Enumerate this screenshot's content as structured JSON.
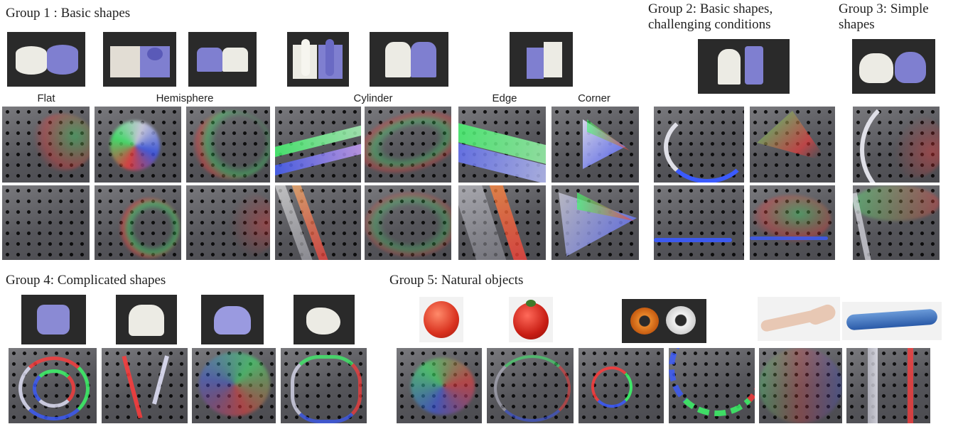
{
  "groups": {
    "g1": {
      "title": "Group 1 : Basic shapes"
    },
    "g2": {
      "title_line1": "Group 2: Basic shapes,",
      "title_line2": "challenging conditions"
    },
    "g3": {
      "title_line1": "Group 3: Simple",
      "title_line2": "shapes"
    },
    "g4": {
      "title": "Group 4: Complicated shapes"
    },
    "g5": {
      "title": "Group 5: Natural objects"
    }
  },
  "columns": {
    "flat": "Flat",
    "hemisphere": "Hemisphere",
    "cylinder": "Cylinder",
    "edge": "Edge",
    "corner": "Corner"
  },
  "colors": {
    "page_bg": "#ffffff",
    "sensor_bg": "#5a5a5e",
    "marker": "#000000",
    "light_red": "#ff3b3b",
    "light_green": "#3bff6a",
    "light_blue": "#3b5bff",
    "object_purple": "#7f7fd0",
    "object_white": "#ecebe4",
    "tomato_red": "#d9321f"
  }
}
